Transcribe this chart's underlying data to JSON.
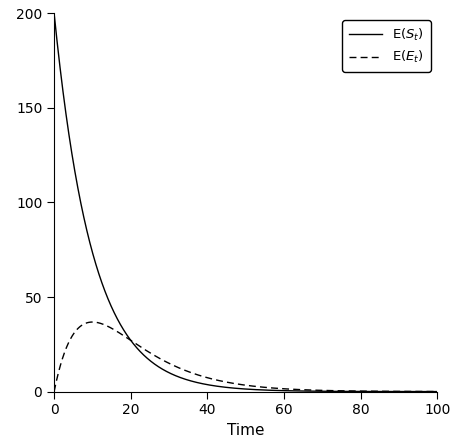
{
  "N": 200,
  "lambda": 0.1,
  "mu": 0.05,
  "t_max": 100,
  "xlim": [
    0,
    100
  ],
  "ylim": [
    0,
    200
  ],
  "xticks": [
    0,
    20,
    40,
    60,
    80,
    100
  ],
  "yticks": [
    0,
    50,
    100,
    150,
    200
  ],
  "xlabel": "Time",
  "ylabel": "",
  "line_color": "#000000",
  "background_color": "#ffffff",
  "figsize": [
    4.51,
    4.45
  ],
  "dpi": 100
}
